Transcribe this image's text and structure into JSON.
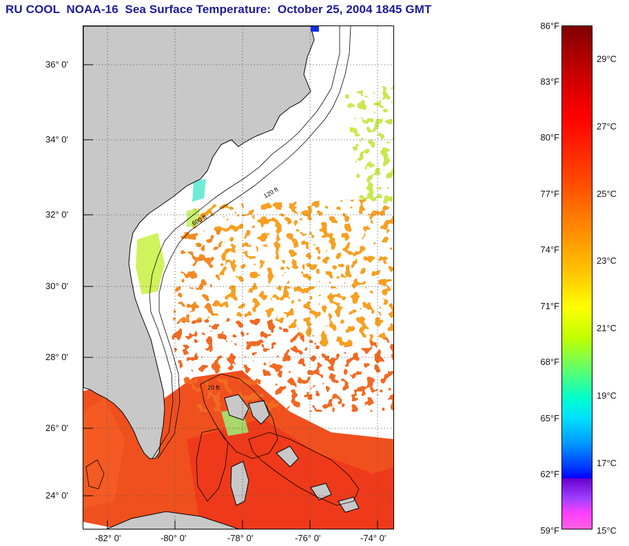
{
  "title": "RU COOL  NOAA-16  Sea Surface Temperature:  October 25, 2004 1845 GMT",
  "map": {
    "lat_labels": [
      "36° 0'",
      "34° 0'",
      "32° 0'",
      "30° 0'",
      "28° 0'",
      "26° 0'",
      "24° 0'"
    ],
    "lon_labels": [
      "-82° 0'",
      "-80° 0'",
      "-78° 0'",
      "-76° 0'",
      "-74° 0'"
    ],
    "contour_labels": [
      "120 ft",
      "600 ft",
      "20 ft"
    ],
    "colors": {
      "land": "#c8c8c8",
      "no_data": "#ffffff",
      "grid": "#555555"
    }
  },
  "colorbar": {
    "fahrenheit": [
      "86°F",
      "83°F",
      "80°F",
      "77°F",
      "74°F",
      "71°F",
      "68°F",
      "65°F",
      "62°F",
      "59°F"
    ],
    "celsius": [
      "29°C",
      "27°C",
      "25°C",
      "23°C",
      "21°C",
      "19°C",
      "17°C",
      "15°C"
    ],
    "range_f": [
      59,
      86
    ],
    "range_c": [
      15,
      30
    ]
  }
}
